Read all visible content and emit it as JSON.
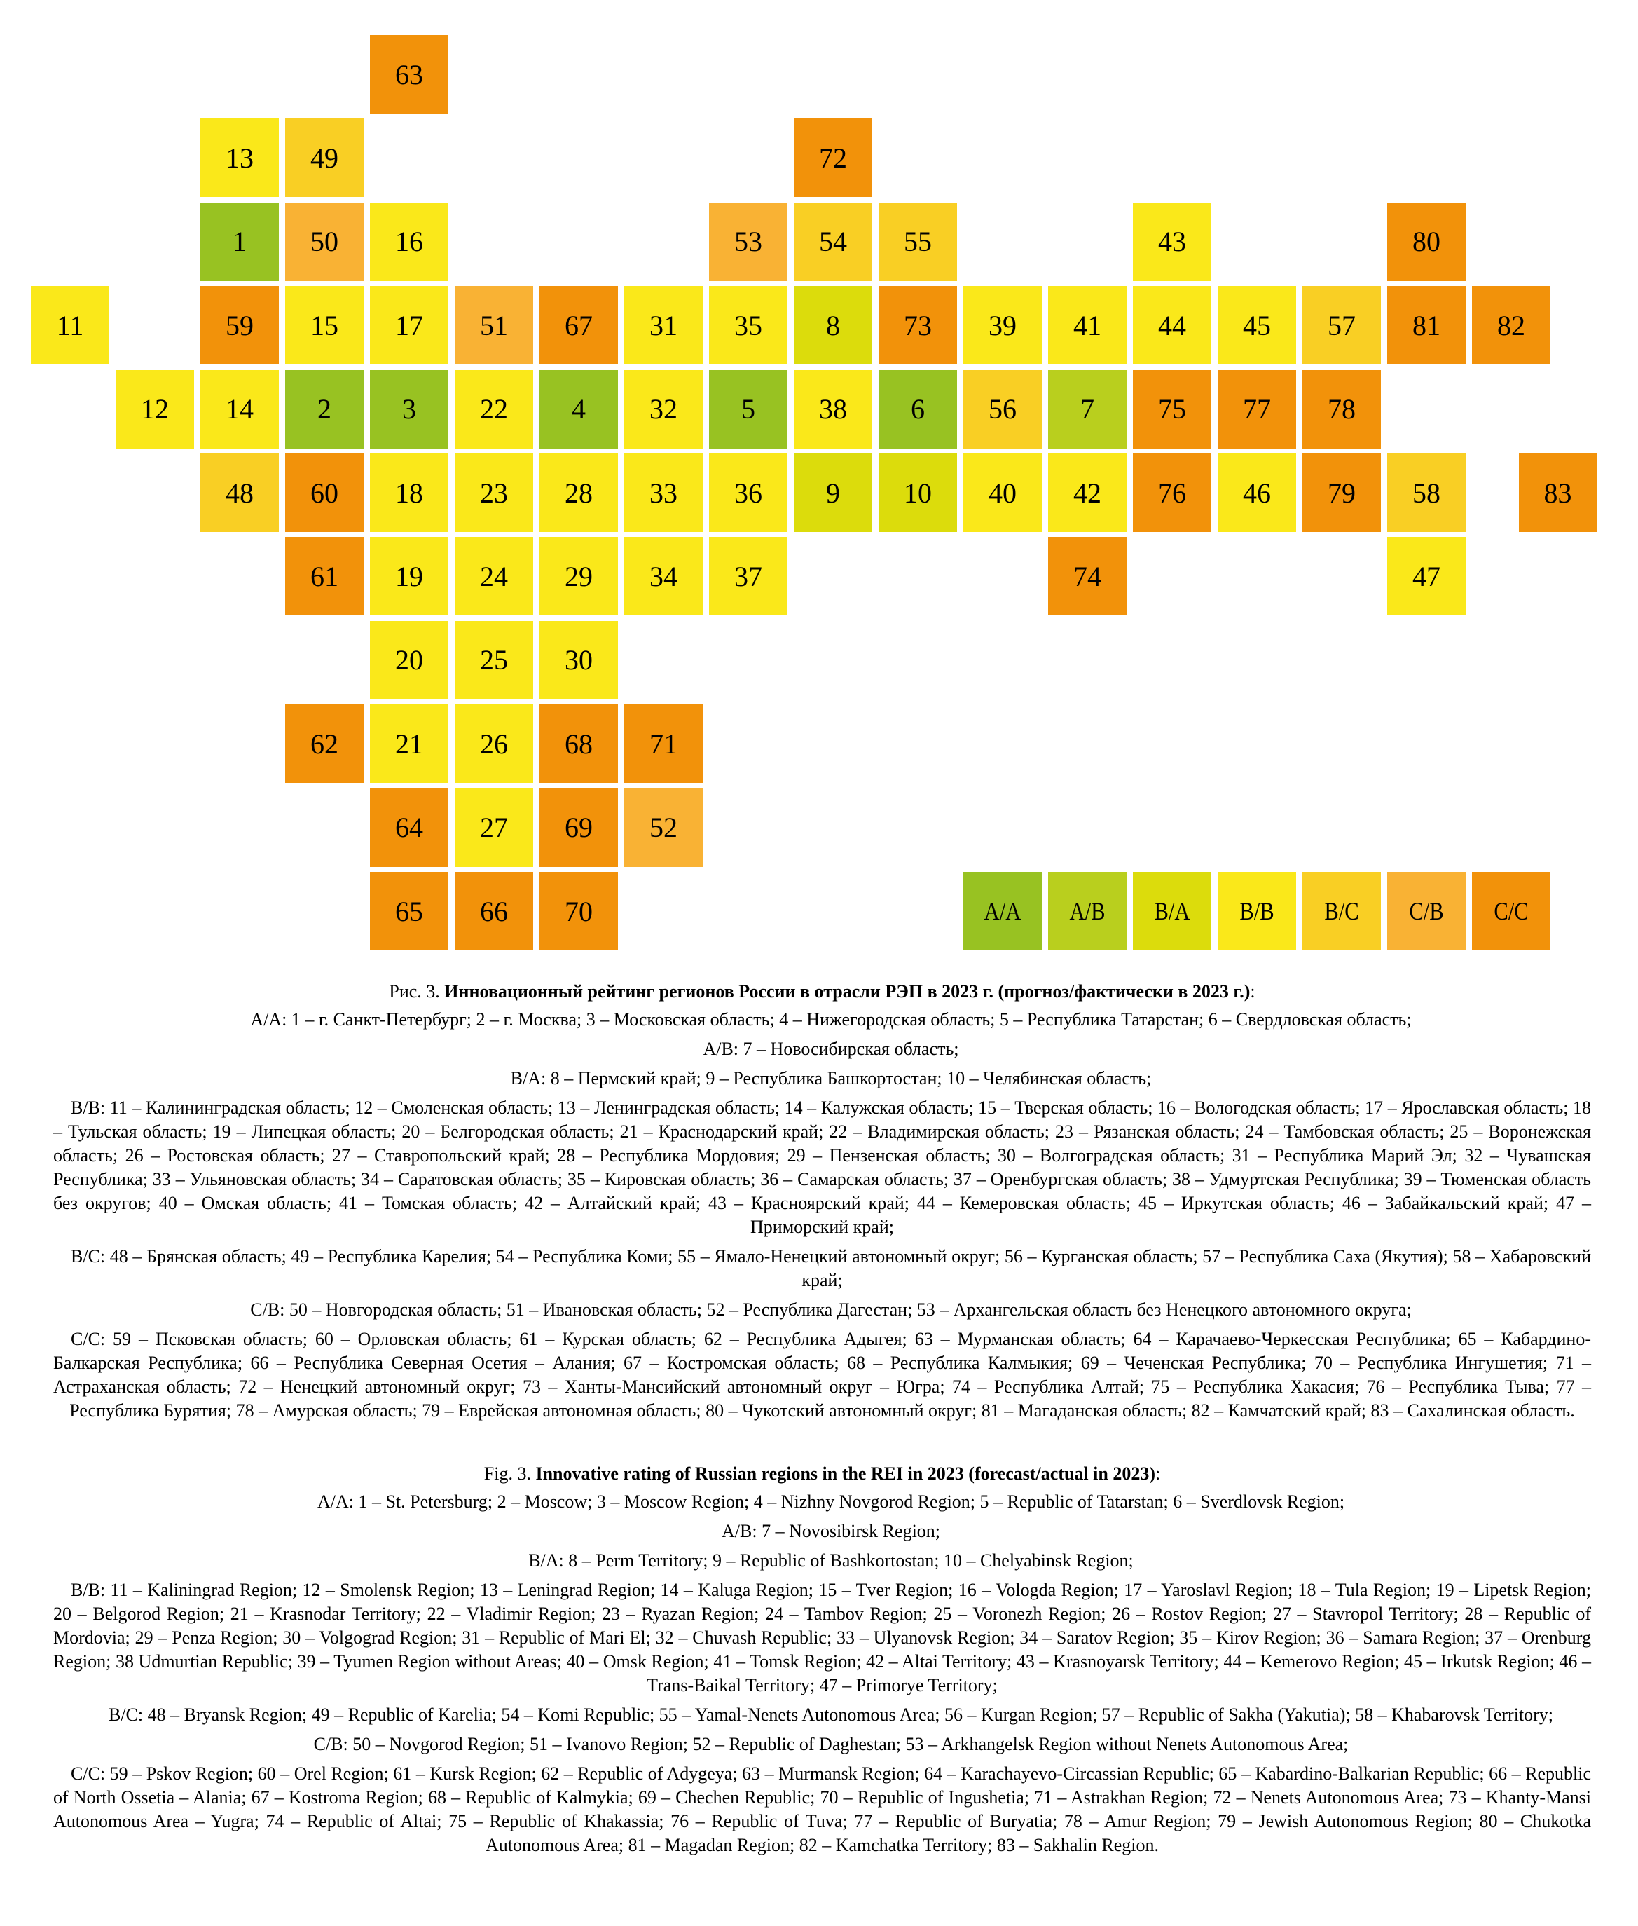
{
  "legend": [
    {
      "code": "A/A",
      "color": "#98c222",
      "regions": [
        1,
        2,
        3,
        4,
        5,
        6
      ]
    },
    {
      "code": "A/B",
      "color": "#b9cf1e",
      "regions": [
        7
      ]
    },
    {
      "code": "B/A",
      "color": "#dcdc0c",
      "regions": [
        8,
        9,
        10
      ]
    },
    {
      "code": "B/B",
      "color": "#fae81a",
      "regions": [
        11,
        12,
        13,
        14,
        15,
        16,
        17,
        18,
        19,
        20,
        21,
        22,
        23,
        24,
        25,
        26,
        27,
        28,
        29,
        30,
        31,
        32,
        33,
        34,
        35,
        36,
        37,
        38,
        39,
        40,
        41,
        42,
        43,
        44,
        45,
        46,
        47
      ]
    },
    {
      "code": "B/C",
      "color": "#f9cf24",
      "regions": [
        48,
        49,
        54,
        55,
        56,
        57,
        58
      ]
    },
    {
      "code": "C/B",
      "color": "#f9b234",
      "regions": [
        50,
        51,
        52,
        53
      ]
    },
    {
      "code": "C/C",
      "color": "#f2920a",
      "regions": [
        59,
        60,
        61,
        62,
        63,
        64,
        65,
        66,
        67,
        68,
        69,
        70,
        71,
        72,
        73,
        74,
        75,
        76,
        77,
        78,
        79,
        80,
        81,
        82,
        83
      ]
    }
  ],
  "caption_ru": {
    "fig_label": "Рис. 3. ",
    "title": "Инновационный рейтинг регионов России в отрасли РЭП в 2023 г. (прогноз/фактически в 2023 г.)",
    "title_end": ":",
    "groups": [
      {
        "code": "A/A:",
        "text": " 1 – г. Санкт-Петербург; 2 – г. Москва; 3 – Московская область; 4 – Нижегородская область; 5 – Республика Татарстан; 6 – Свердловская область;"
      },
      {
        "code": "A/B:",
        "text": " 7 – Новосибирская область;"
      },
      {
        "code": "B/A:",
        "text": " 8 – Пермский край; 9 – Республика Башкортостан; 10 – Челябинская область;"
      },
      {
        "code": "B/B:",
        "text": " 11 – Калининградская область; 12 – Смоленская область; 13 – Ленинградская область; 14 – Калужская область; 15 – Тверская область; 16 – Вологодская область; 17 – Ярославская область; 18 – Тульская область;  19 – Липецкая область; 20 – Белгородская область; 21 – Краснодарский край; 22 – Владимирская область; 23 – Рязанская область; 24 – Тамбовская область; 25 – Воронежская область; 26 – Ростовская область; 27 – Ставропольский край; 28 – Республика Мордовия; 29 – Пензенская область; 30 – Волгоградская область; 31 – Республика Марий Эл; 32 – Чувашская Республика; 33 – Ульяновская область; 34 – Саратовская область; 35 – Кировская область; 36 – Самарская область; 37 – Оренбургская область; 38 – Удмуртская Республика; 39 – Тюменская область без округов; 40 – Омская область; 41 – Томская область; 42 – Алтайский край; 43 – Красноярский край; 44 – Кемеровская область; 45 – Иркутская область; 46 – Забайкальский край; 47 – Приморский край;"
      },
      {
        "code": "B/C:",
        "text": " 48 – Брянская область; 49 – Республика Карелия; 54 – Республика Коми; 55 – Ямало-Ненецкий автономный округ; 56 – Курганская область;  57 – Республика Саха (Якутия); 58 – Хабаровский край;"
      },
      {
        "code": "C/B:",
        "text": " 50 – Новгородская область; 51 – Ивановская область; 52 – Республика Дагестан; 53 – Архангельская область без Ненецкого автономного округа;"
      },
      {
        "code": "C/C:",
        "text": " 59 – Псковская область; 60 – Орловская область; 61 – Курская область; 62 – Республика Адыгея; 63 – Мурманская область; 64 – Карачаево-Черкесская Республика; 65 – Кабардино-Балкарская Республика; 66 – Республика Северная Осетия – Алания; 67 – Костромская область; 68 – Республика Калмыкия; 69 – Чеченская Республика; 70 – Республика Ингушетия; 71 – Астраханская область; 72 – Ненецкий автономный округ; 73 – Ханты-Мансийский автономный округ – Югра; 74 – Республика Алтай; 75 – Республика Хакасия; 76 – Республика Тыва; 77 – Республика Бурятия; 78 – Амурская область; 79 – Еврейская автономная область; 80 – Чукотский автономный округ; 81 – Магаданская область; 82 – Камчатский край; 83 – Сахалинская область."
      }
    ]
  },
  "caption_en": {
    "fig_label": "Fig. 3. ",
    "title": "Innovative rating of Russian regions in the REI in 2023 (forecast/actual in 2023)",
    "title_end": ":",
    "groups": [
      {
        "code": "A/A:",
        "text": " 1 – St. Petersburg; 2 – Moscow; 3 – Moscow Region; 4 – Nizhny Novgorod Region; 5 – Republic of Tatarstan; 6 – Sverdlovsk Region;"
      },
      {
        "code": "A/B:",
        "text": " 7 – Novosibirsk Region;"
      },
      {
        "code": "B/A:",
        "text": " 8 – Perm Territory; 9 – Republic of Bashkortostan; 10 – Chelyabinsk Region;"
      },
      {
        "code": "B/B:",
        "text": " 11 – Kaliningrad Region; 12 – Smolensk Region; 13 – Leningrad Region; 14 – Kaluga Region; 15 – Tver Region; 16 – Vologda Region; 17 – Yaroslavl Region; 18 – Tula Region; 19 – Lipetsk Region; 20 – Belgorod Region; 21 – Krasnodar Territory; 22 – Vladimir Region; 23 – Ryazan Region; 24 – Tambov Region; 25 – Voronezh Region; 26 – Rostov Region; 27 – Stavropol Territory; 28 – Republic of Mordovia; 29 – Penza Region; 30 – Volgograd Region; 31 – Republic of Mari El; 32 – Chuvash Republic; 33 – Ulyanovsk Region; 34 – Saratov Region; 35 – Kirov Region; 36 – Samara Region; 37 – Orenburg Region; 38  Udmurtian Republic; 39 – Tyumen Region without Areas; 40 – Omsk Region; 41 – Tomsk Region; 42 – Altai Territory; 43 – Krasnoyarsk Territory; 44 – Kemerovo Region; 45 – Irkutsk Region; 46 – Trans-Baikal Territory; 47 – Primorye Territory;"
      },
      {
        "code": "B/C:",
        "text": " 48 – Bryansk Region; 49 – Republic of Karelia; 54 – Komi Republic; 55 – Yamal-Nenets Autonomous Area; 56 – Kurgan Region; 57 – Republic of Sakha (Yakutia); 58 – Khabarovsk Territory;"
      },
      {
        "code": "C/B:",
        "text": " 50 – Novgorod Region; 51 – Ivanovo Region; 52 – Republic of Daghestan; 53 – Arkhangelsk Region without Nenets Autonomous Area;"
      },
      {
        "code": "C/C:",
        "text": " 59 – Pskov Region; 60 – Orel Region; 61 – Kursk Region; 62 – Republic of Adygeya; 63 – Murmansk Region; 64 – Karachayevo-Circassian Republic; 65 – Kabardino-Balkarian Republic; 66 – Republic of North Ossetia – Alania; 67 – Kostroma Region; 68 – Republic of Kalmykia; 69 – Chechen Republic; 70 – Republic of Ingushetia; 71 – Astrakhan Region; 72 – Nenets Autonomous Area; 73 – Khanty-Mansi Autonomous Area – Yugra; 74 – Republic of Altai; 75 – Republic of Khakassia; 76 – Republic of Tuva; 77 – Republic of Buryatia; 78 – Amur Region; 79 – Jewish Autonomous Region; 80 – Chukotka Autonomous Area; 81 – Magadan Region; 82 – Kamchatka Territory; 83 – Sakhalin Region."
      }
    ]
  }
}
